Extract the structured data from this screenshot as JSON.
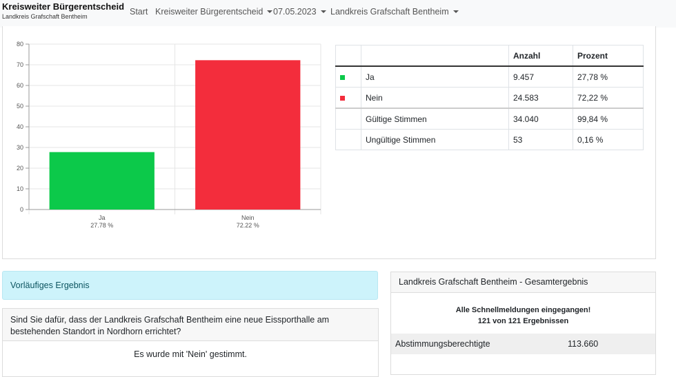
{
  "navbar": {
    "title": "Kreisweiter Bürgerentscheid",
    "subtitle": "Landkreis Grafschaft Bentheim",
    "items": [
      "Start",
      "Kreisweiter Bürgerentscheid",
      "07.05.2023",
      "Landkreis Grafschaft Bentheim"
    ]
  },
  "chart_data": {
    "type": "bar",
    "categories": [
      "Ja",
      "Nein"
    ],
    "values": [
      27.78,
      72.22
    ],
    "value_labels": [
      "27.78 %",
      "72.22 %"
    ],
    "colors": [
      "#0cc94a",
      "#f32d3c"
    ],
    "ylim": [
      0,
      80
    ],
    "yticks": [
      0,
      10,
      20,
      30,
      40,
      50,
      60,
      70,
      80
    ],
    "grid": true
  },
  "result_table": {
    "header": [
      "Anzahl",
      "Prozent"
    ],
    "rows": [
      {
        "label": "Ja",
        "count": "9.457",
        "percent": "27,78 %",
        "color": "#0cc94a"
      },
      {
        "label": "Nein",
        "count": "24.583",
        "percent": "72,22 %",
        "color": "#f32d3c"
      },
      {
        "label": "Gültige Stimmen",
        "count": "34.040",
        "percent": "99,84 %"
      },
      {
        "label": "Ungültige Stimmen",
        "count": "53",
        "percent": "0,16 %"
      }
    ]
  },
  "status": "Vorläufiges Ergebnis",
  "question": {
    "text": "Sind Sie dafür, dass der Landkreis Grafschaft Bentheim eine neue Eissporthalle am bestehenden Standort in Nordhorn errichtet?",
    "answer": "Es wurde mit 'Nein' gestimmt."
  },
  "summary": {
    "title": "Landkreis Grafschaft Bentheim - Gesamtergebnis",
    "notice": "Alle Schnellmeldungen eingegangen!",
    "progress": "121 von 121 Ergebnissen",
    "rows": [
      {
        "label": "Abstimmungsberechtigte",
        "value": "113.660"
      }
    ]
  }
}
